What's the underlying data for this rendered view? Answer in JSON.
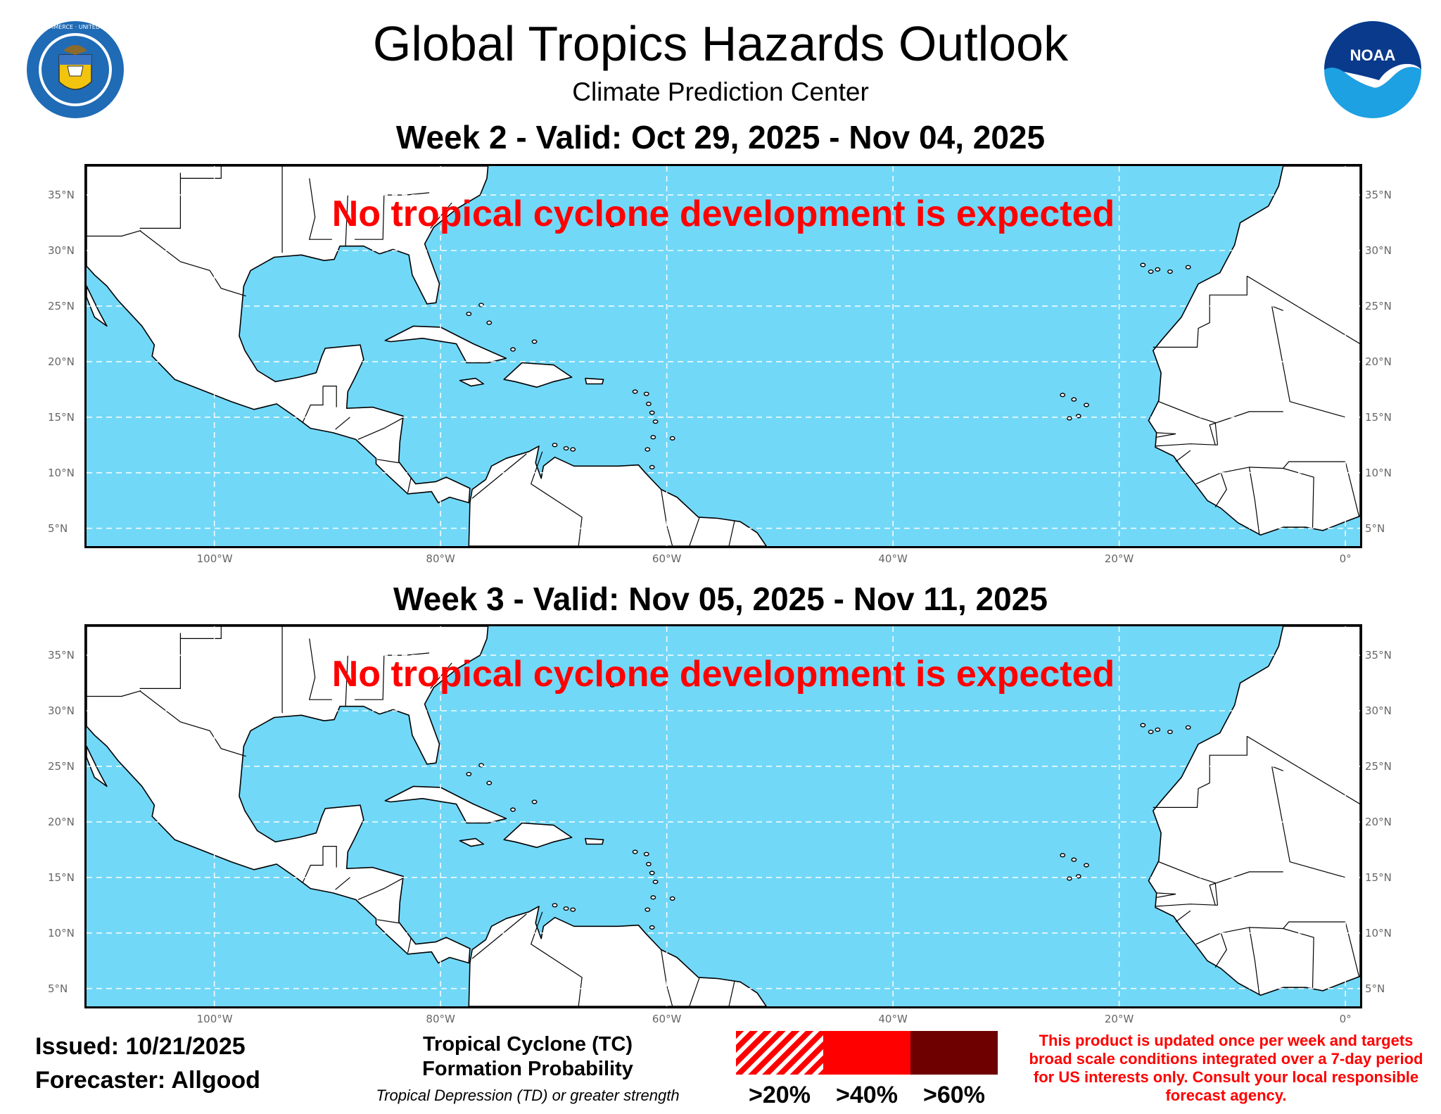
{
  "header": {
    "title": "Global Tropics Hazards Outlook",
    "subtitle": "Climate Prediction Center"
  },
  "logos": {
    "left": "department-of-commerce-seal",
    "left_text": "DEPARTMENT OF COMMERCE · UNITED STATES OF AMERICA",
    "right": "noaa-logo",
    "right_text": "NOAA"
  },
  "maps": [
    {
      "title": "Week 2 - Valid: Oct 29, 2025 - Nov 04, 2025",
      "message": "No tropical cyclone development is expected"
    },
    {
      "title": "Week 3 - Valid: Nov 05, 2025 - Nov 11, 2025",
      "message": "No tropical cyclone development is expected"
    }
  ],
  "axes": {
    "lat_labels": [
      "35°N",
      "30°N",
      "25°N",
      "20°N",
      "15°N",
      "10°N",
      "5°N"
    ],
    "lon_labels": [
      "100°W",
      "80°W",
      "60°W",
      "40°W",
      "20°W",
      "0°"
    ],
    "lat_values": [
      35,
      30,
      25,
      20,
      15,
      10,
      5
    ],
    "lon_values": [
      -100,
      -80,
      -60,
      -40,
      -20,
      0
    ],
    "lon_range": [
      -111.3,
      1.3
    ],
    "lat_range": [
      3.4,
      37.6
    ],
    "grid": true
  },
  "footer": {
    "issued": "Issued: 10/21/2025",
    "forecaster": "Forecaster: Allgood"
  },
  "legend": {
    "title_line1": "Tropical Cyclone (TC)",
    "title_line2": "Formation Probability",
    "note": "Tropical Depression (TD) or greater strength",
    "items": [
      {
        "label": ">20%",
        "color": "#ff0000",
        "pattern": "hatched"
      },
      {
        "label": ">40%",
        "color": "#ff0000",
        "pattern": "solid"
      },
      {
        "label": ">60%",
        "color": "#6e0000",
        "pattern": "solid"
      }
    ]
  },
  "disclaimer": "This product is updated once per week and targets broad scale conditions integrated over a 7-day period for US interests only. Consult your local responsible forecast agency.",
  "colors": {
    "ocean": "#72d8f8",
    "land": "#ffffff",
    "message": "#ff0000"
  }
}
